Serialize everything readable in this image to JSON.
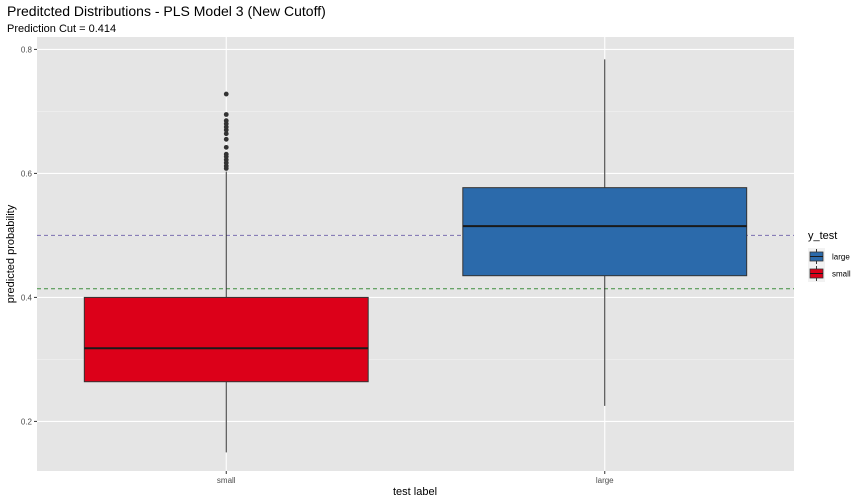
{
  "chart_data": {
    "type": "box",
    "title": "Preditcted Distributions - PLS Model 3 (New Cutoff)",
    "subtitle": "Prediction Cut = 0.414",
    "xlabel": "test label",
    "ylabel": "predicted probability",
    "categories": [
      "small",
      "large"
    ],
    "ylim": [
      0.12,
      0.82
    ],
    "yticks": [
      0.2,
      0.4,
      0.6,
      0.8
    ],
    "ytick_labels": [
      "0.2",
      "0.4",
      "0.6",
      "0.8"
    ],
    "grid": true,
    "legend": {
      "title": "y_test",
      "placement": "right",
      "entries": [
        {
          "label": "large",
          "color": "#2B6AAB"
        },
        {
          "label": "small",
          "color": "#DC0019"
        }
      ]
    },
    "boxes": [
      {
        "category": "small",
        "color": "#DC0019",
        "whisker_low": 0.15,
        "q1": 0.264,
        "median": 0.318,
        "q3": 0.4,
        "whisker_high": 0.603,
        "outliers": [
          0.608,
          0.612,
          0.617,
          0.622,
          0.627,
          0.631,
          0.642,
          0.655,
          0.664,
          0.67,
          0.675,
          0.68,
          0.685,
          0.695,
          0.728
        ]
      },
      {
        "category": "large",
        "color": "#2B6AAB",
        "whisker_low": 0.225,
        "q1": 0.435,
        "median": 0.515,
        "q3": 0.577,
        "whisker_high": 0.784,
        "outliers": []
      }
    ],
    "reference_lines": [
      {
        "value": 0.5,
        "color": "#7B6FB0",
        "style": "dashed"
      },
      {
        "value": 0.414,
        "color": "#3E8E3E",
        "style": "dashed"
      }
    ]
  }
}
